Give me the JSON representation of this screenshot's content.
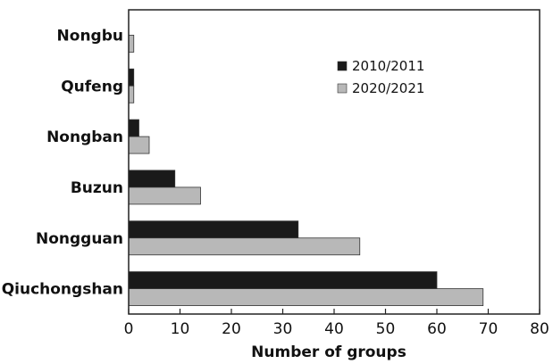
{
  "chart_data": {
    "type": "bar",
    "orientation": "horizontal",
    "categories": [
      "Nongbu",
      "Qufeng",
      "Nongban",
      "Buzun",
      "Nongguan",
      "Qiuchongshan"
    ],
    "series": [
      {
        "name": "2010/2011",
        "color": "#1a1a1a",
        "values": [
          0,
          1,
          2,
          9,
          33,
          60
        ]
      },
      {
        "name": "2020/2021",
        "color": "#b8b8b8",
        "values": [
          1,
          1,
          4,
          14,
          45,
          69
        ]
      }
    ],
    "xlabel": "Number of groups",
    "ylabel": "",
    "xlim": [
      0,
      80
    ],
    "xticks": [
      0,
      10,
      20,
      30,
      40,
      50,
      60,
      70,
      80
    ],
    "grid": false,
    "legend_position": "top-right"
  }
}
